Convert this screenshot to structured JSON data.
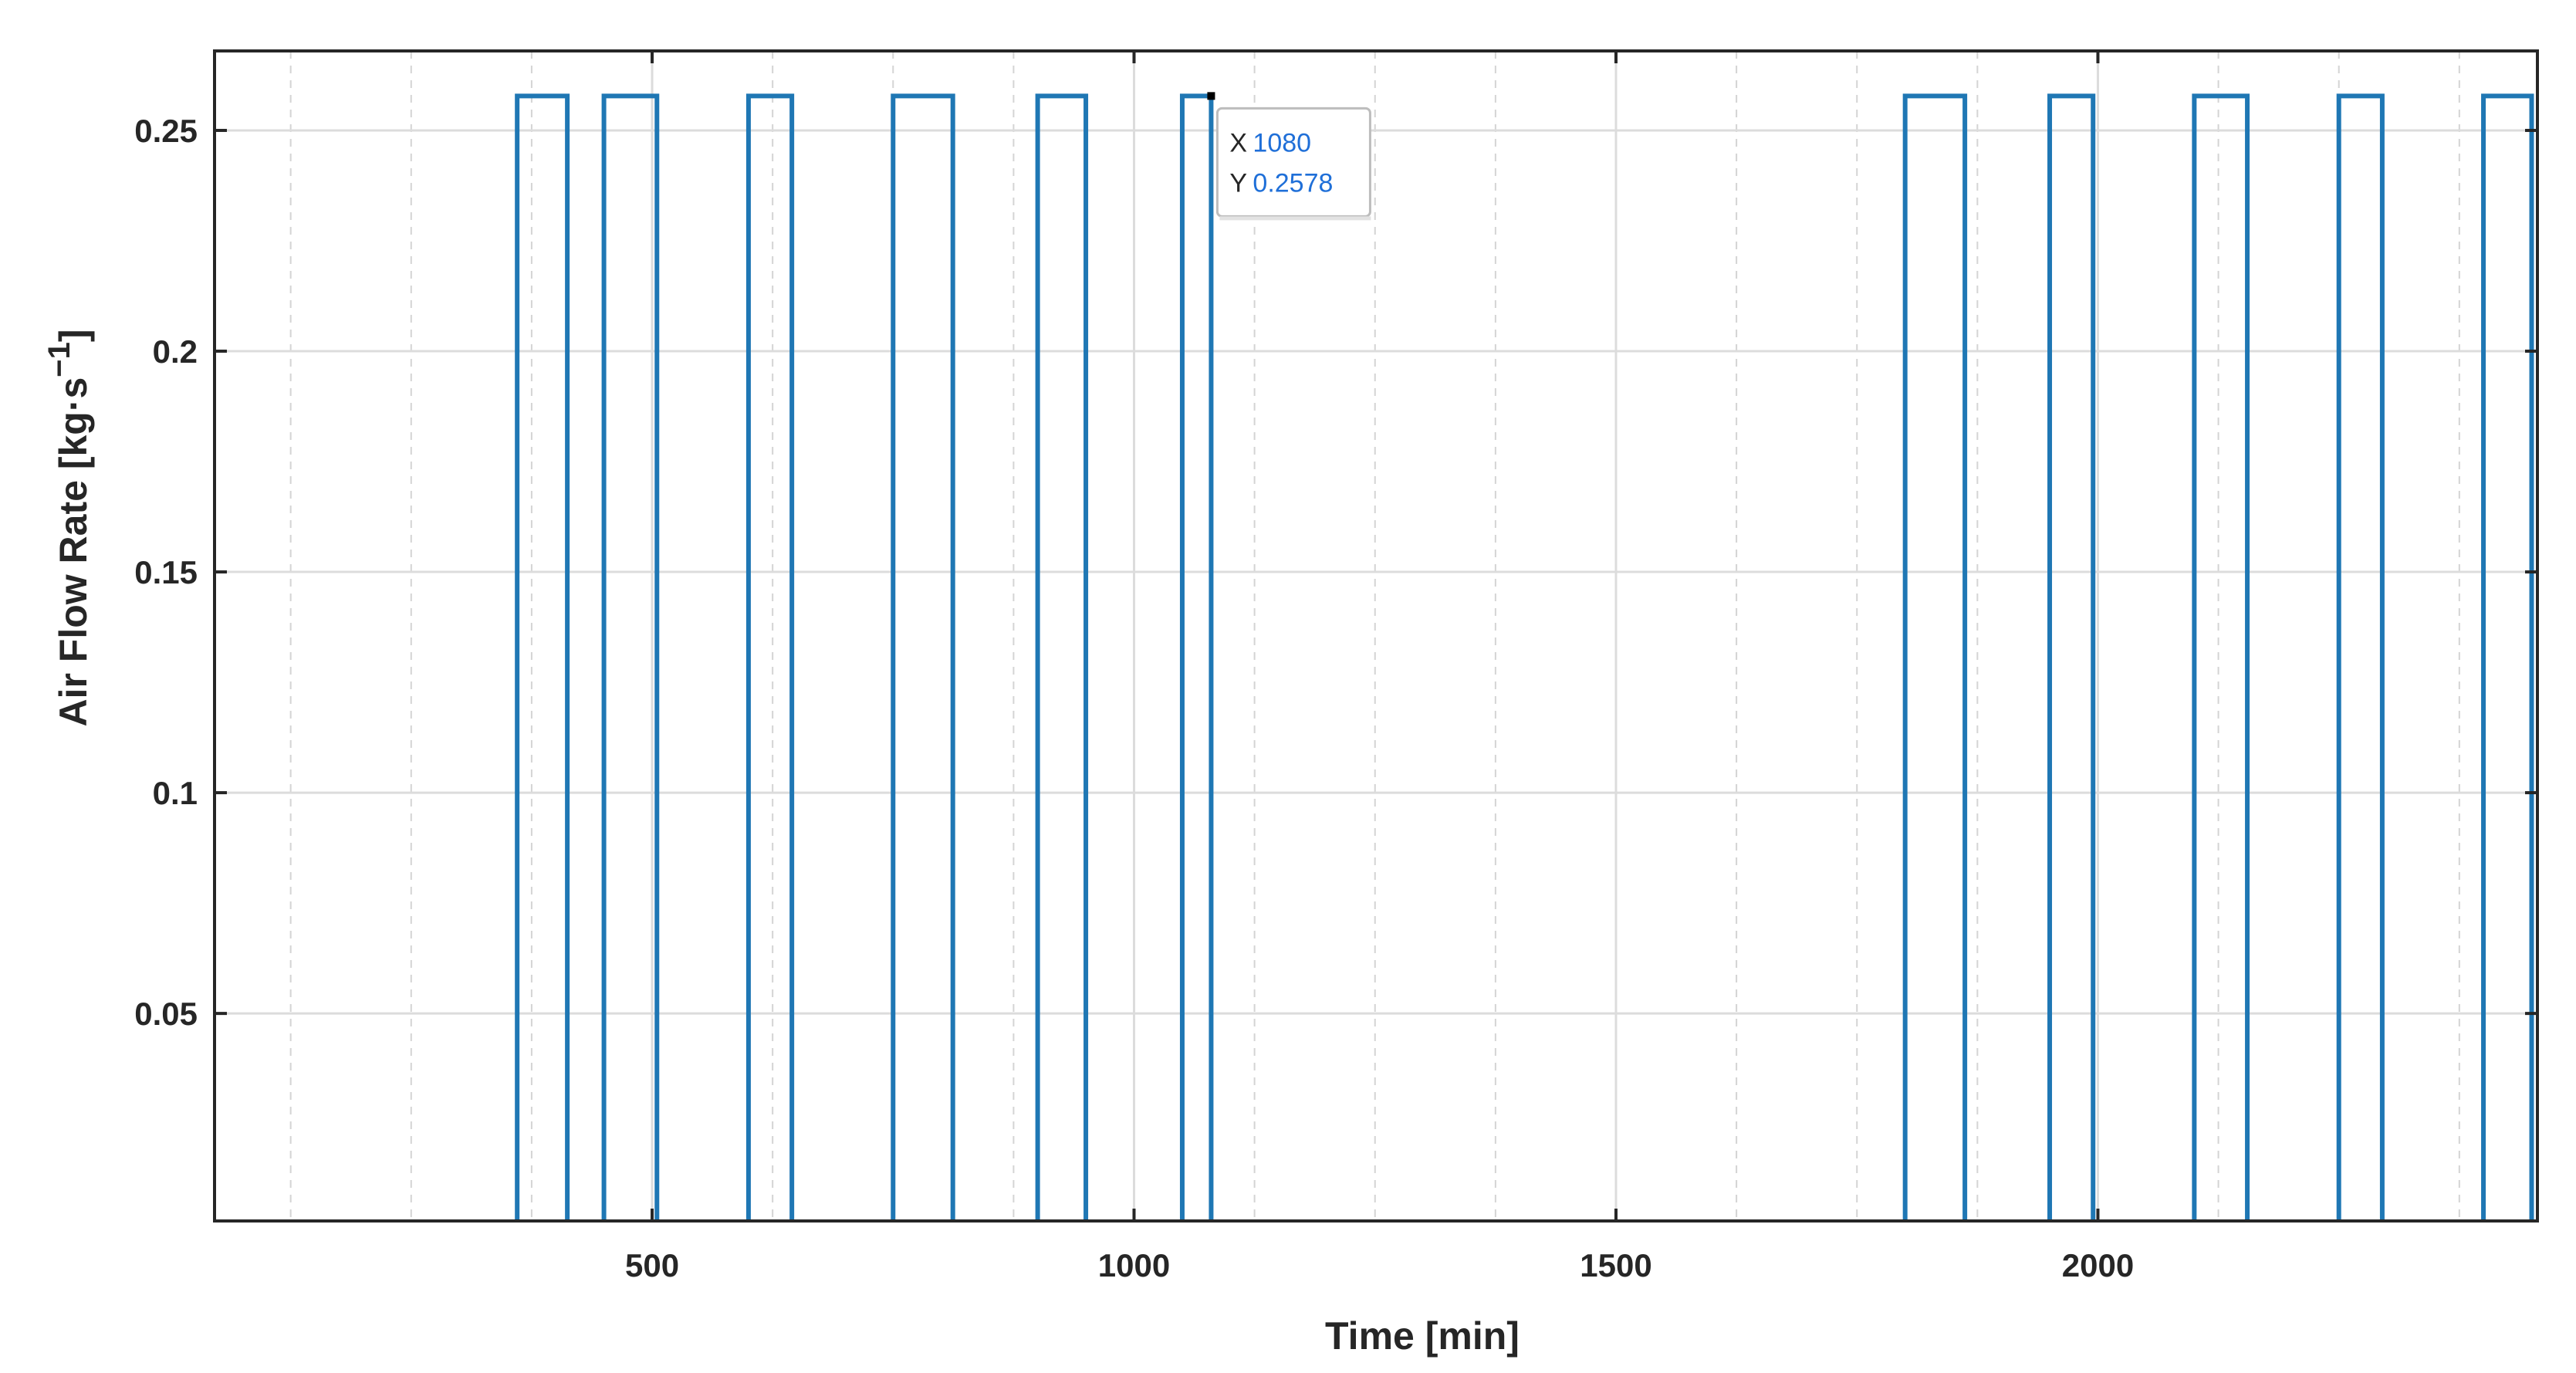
{
  "chart_data": {
    "type": "line",
    "title": "",
    "xlabel": "Time [min]",
    "ylabel_main": "Air Flow Rate [kg·s",
    "ylabel_sup": "−1",
    "ylabel_close": "]",
    "xlim": [
      46,
      2456
    ],
    "ylim": [
      0.003,
      0.268
    ],
    "x_ticks": [
      500,
      1000,
      1500,
      2000
    ],
    "x_tick_labels": [
      "500",
      "1000",
      "1500",
      "2000"
    ],
    "y_ticks": [
      0.05,
      0.1,
      0.15,
      0.2,
      0.25
    ],
    "y_tick_labels": [
      "0.05",
      "0.1",
      "0.15",
      "0.2",
      "0.25"
    ],
    "grid": "on",
    "line_color": "#1f77b4",
    "series": [
      {
        "type": "step",
        "pulse_value": 0.2578,
        "pulses": [
          [
            360,
            412
          ],
          [
            450,
            505
          ],
          [
            600,
            645
          ],
          [
            750,
            812
          ],
          [
            900,
            950
          ],
          [
            1050,
            1080
          ],
          [
            1800,
            1862
          ],
          [
            1950,
            1995
          ],
          [
            2100,
            2155
          ],
          [
            2250,
            2295
          ],
          [
            2400,
            2450
          ]
        ]
      }
    ],
    "datatip": {
      "x_key": "X",
      "x_value": "1080",
      "y_key": "Y",
      "y_value": "0.2578",
      "point_x": 1080,
      "point_y": 0.2578
    }
  }
}
